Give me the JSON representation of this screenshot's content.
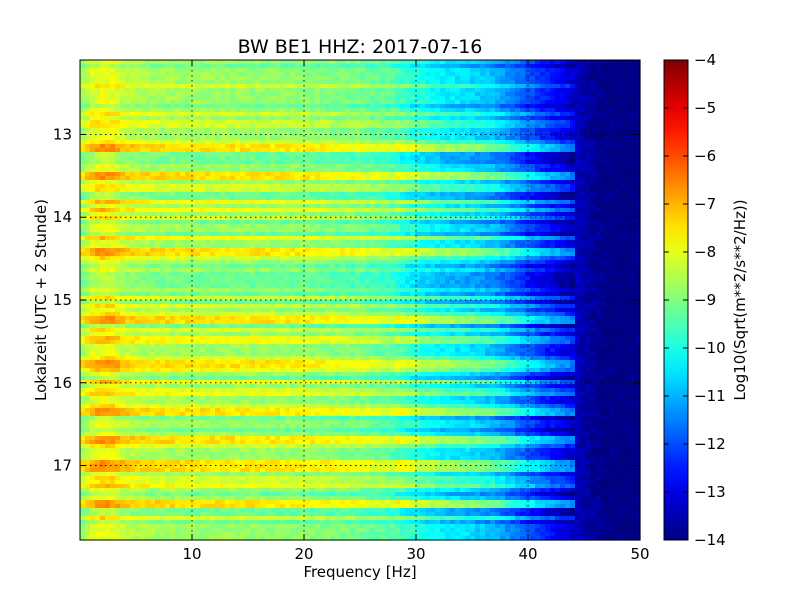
{
  "chart_data": {
    "type": "heatmap",
    "title": "BW BE1 HHZ: 2017-07-16",
    "xlabel": "Frequency [Hz]",
    "ylabel": "Lokalzeit (UTC + 2 Stunde)",
    "colorbar_label": "Log10(Sqrt(m**2/s**2/Hz))",
    "colormap": "jet",
    "xlim": [
      0,
      50
    ],
    "ylim": [
      12.1,
      17.9
    ],
    "y_inverted": true,
    "grid": true,
    "x_ticks": [
      10,
      20,
      30,
      40,
      50
    ],
    "y_ticks": [
      13,
      14,
      15,
      16,
      17
    ],
    "colorbar_range": [
      -14,
      -4
    ],
    "colorbar_ticks": [
      -4,
      -5,
      -6,
      -7,
      -8,
      -9,
      -10,
      -11,
      -12,
      -13,
      -14
    ],
    "frequency_profile": [
      {
        "f": 0,
        "v": -8.9
      },
      {
        "f": 1,
        "v": -8.2
      },
      {
        "f": 2,
        "v": -7.9
      },
      {
        "f": 3,
        "v": -8.0
      },
      {
        "f": 4,
        "v": -8.4
      },
      {
        "f": 6,
        "v": -8.6
      },
      {
        "f": 10,
        "v": -8.7
      },
      {
        "f": 15,
        "v": -8.75
      },
      {
        "f": 20,
        "v": -8.85
      },
      {
        "f": 25,
        "v": -9.1
      },
      {
        "f": 28,
        "v": -9.4
      },
      {
        "f": 30,
        "v": -9.9
      },
      {
        "f": 32,
        "v": -10.3
      },
      {
        "f": 35,
        "v": -10.6
      },
      {
        "f": 37,
        "v": -10.9
      },
      {
        "f": 39,
        "v": -11.6
      },
      {
        "f": 41,
        "v": -12.3
      },
      {
        "f": 43,
        "v": -12.9
      },
      {
        "f": 45,
        "v": -13.6
      },
      {
        "f": 47,
        "v": -14.0
      },
      {
        "f": 50,
        "v": -14.0
      }
    ],
    "strong_bands_hours": [
      17.0,
      17.04,
      16.67,
      16.33,
      15.75,
      15.25,
      14.42,
      13.5,
      13.17,
      17.45
    ]
  }
}
